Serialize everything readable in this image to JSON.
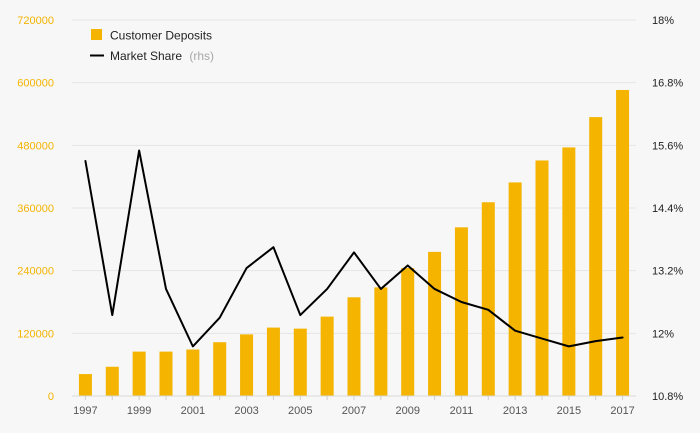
{
  "chart_data": {
    "type": "bar",
    "title": "",
    "xlabel": "",
    "ylabel": "",
    "categories": [
      "1997",
      "1998",
      "1999",
      "2000",
      "2001",
      "2002",
      "2003",
      "2004",
      "2005",
      "2006",
      "2007",
      "2008",
      "2009",
      "2010",
      "2011",
      "2012",
      "2013",
      "2014",
      "2015",
      "2016",
      "2017"
    ],
    "x_tick_labels": [
      "1997",
      "1999",
      "2001",
      "2003",
      "2005",
      "2007",
      "2009",
      "2011",
      "2013",
      "2015",
      "2017"
    ],
    "series": [
      {
        "name": "Customer Deposits",
        "type": "bar",
        "axis": "left",
        "color": "#f4b400",
        "values": [
          42000,
          56000,
          85000,
          85000,
          89000,
          103000,
          118000,
          131000,
          129000,
          152000,
          189000,
          208000,
          245000,
          276000,
          323000,
          371000,
          409000,
          451000,
          476000,
          534000,
          586000
        ]
      },
      {
        "name": "Market Share",
        "name_suffix": "(rhs)",
        "type": "line",
        "axis": "right",
        "color": "#000000",
        "values": [
          15.3,
          12.35,
          15.5,
          12.85,
          11.75,
          12.3,
          13.25,
          13.65,
          12.35,
          12.85,
          13.55,
          12.85,
          13.3,
          12.85,
          12.6,
          12.45,
          12.05,
          11.9,
          11.75,
          11.85,
          11.92
        ]
      }
    ],
    "left_axis": {
      "min": 0,
      "max": 720000,
      "ticks": [
        "0",
        "120000",
        "240000",
        "360000",
        "480000",
        "600000",
        "720000"
      ]
    },
    "right_axis": {
      "min": 10.8,
      "max": 18.0,
      "ticks": [
        "10.8%",
        "12%",
        "13.2%",
        "14.4%",
        "15.6%",
        "16.8%",
        "18%"
      ]
    },
    "legend": {
      "position": "top-left",
      "items": [
        {
          "label": "Customer Deposits",
          "suffix": "",
          "color": "#f4b400",
          "marker": "square"
        },
        {
          "label": "Market Share",
          "suffix": "(rhs)",
          "color": "#000000",
          "marker": "line"
        }
      ]
    },
    "grid": true
  }
}
